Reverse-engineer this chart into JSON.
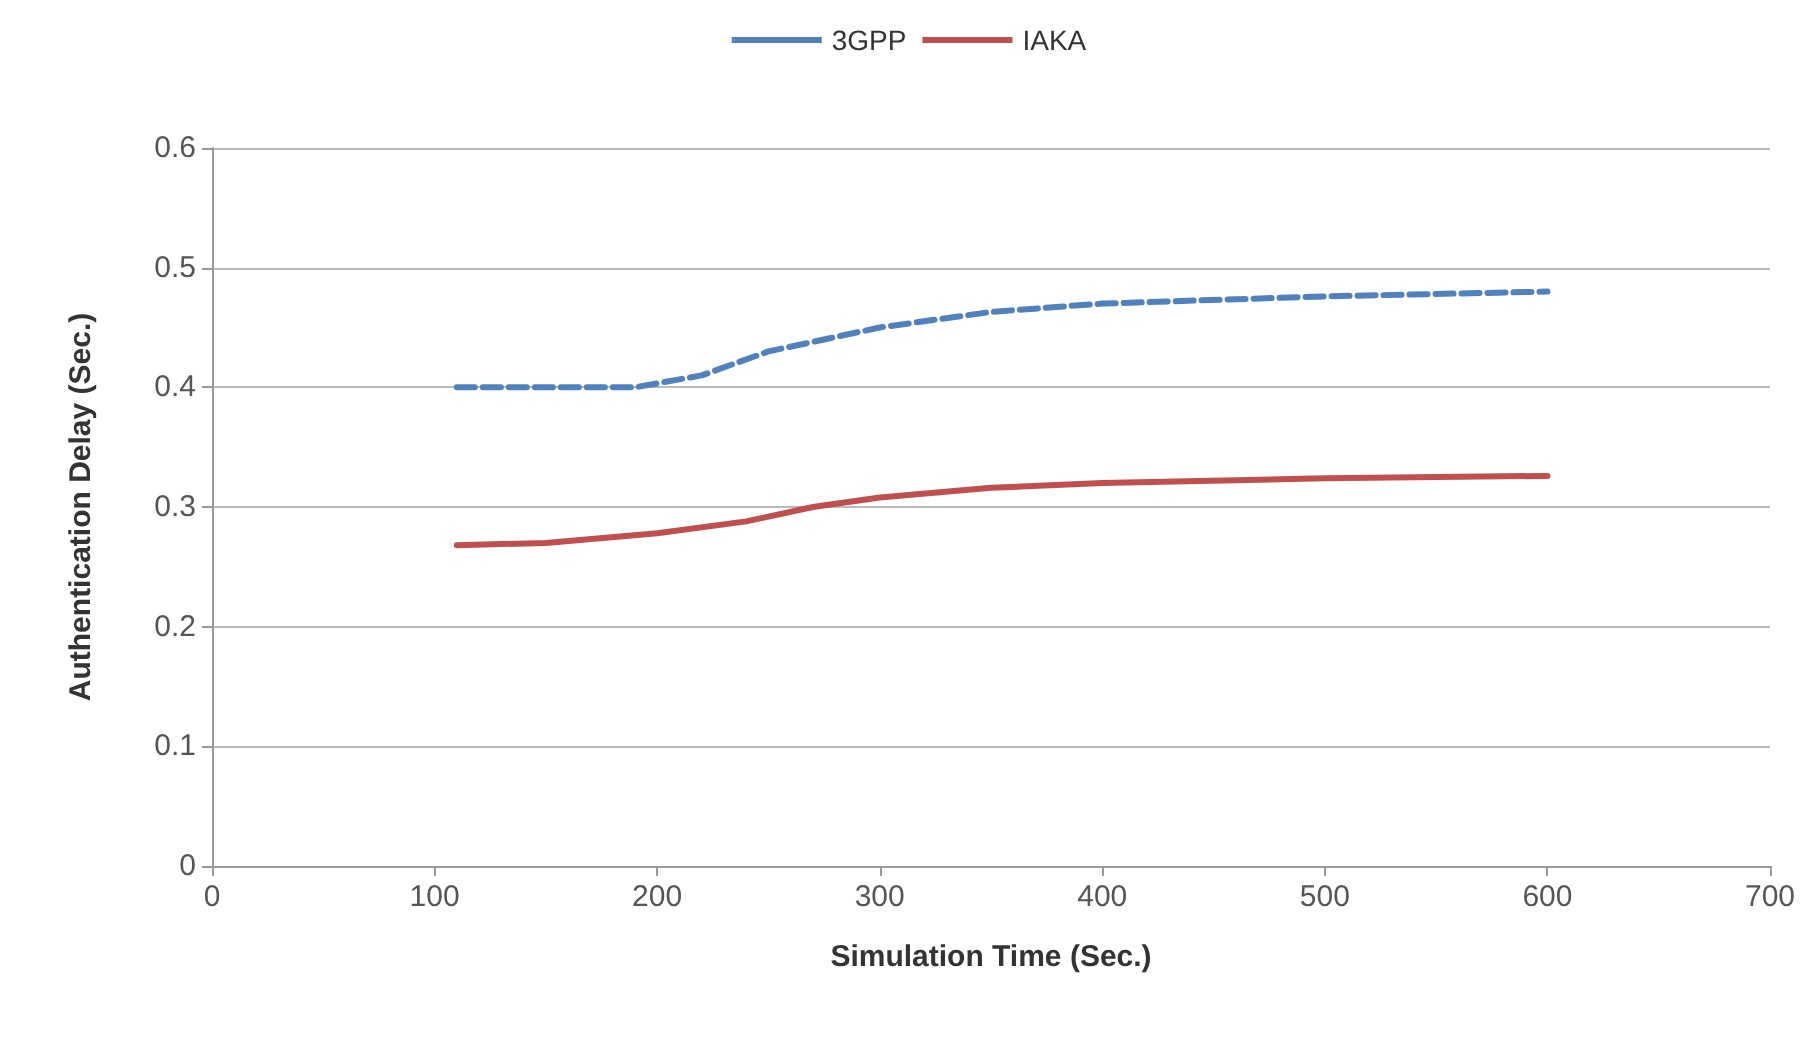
{
  "chart_data": {
    "type": "line",
    "xlabel": "Simulation Time (Sec.)",
    "ylabel": "Authentication Delay (Sec.)",
    "xlim": [
      0,
      700
    ],
    "xticks": [
      0,
      100,
      200,
      300,
      400,
      500,
      600,
      700
    ],
    "ylim": [
      0,
      0.6
    ],
    "yticks": [
      0,
      0.1,
      0.2,
      0.3,
      0.4,
      0.5,
      0.6
    ],
    "grid": "y",
    "legend": "top",
    "marker": "none",
    "series": [
      {
        "name": "3GPP",
        "color": "#4f81bd",
        "line_style": "dashed",
        "x": [
          110,
          150,
          190,
          220,
          250,
          300,
          350,
          400,
          500,
          600
        ],
        "values": [
          0.4,
          0.4,
          0.4,
          0.41,
          0.43,
          0.45,
          0.463,
          0.47,
          0.476,
          0.48
        ]
      },
      {
        "name": "IAKA",
        "color": "#c0504d",
        "line_style": "solid",
        "x": [
          110,
          150,
          200,
          240,
          270,
          300,
          350,
          400,
          500,
          600
        ],
        "values": [
          0.268,
          0.27,
          0.278,
          0.288,
          0.3,
          0.308,
          0.316,
          0.32,
          0.324,
          0.326
        ]
      }
    ]
  }
}
